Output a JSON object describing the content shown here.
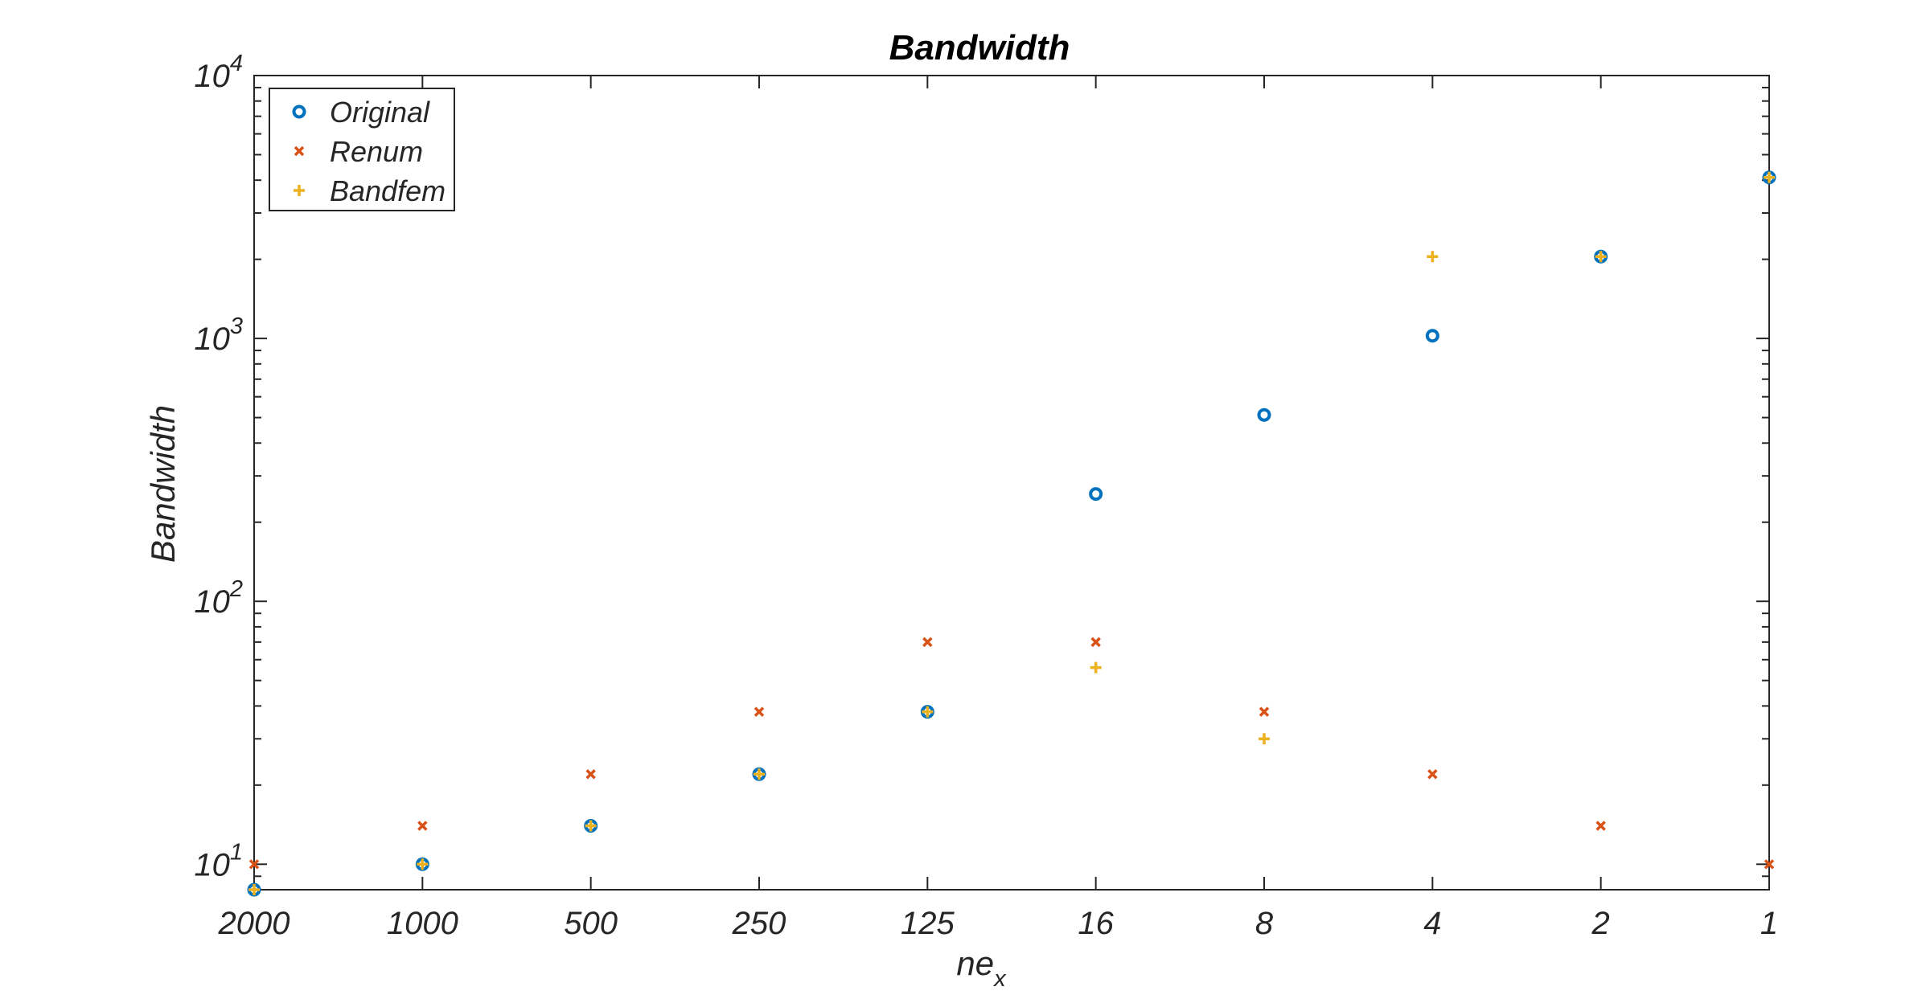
{
  "chart_data": {
    "type": "scatter",
    "title": "Bandwidth",
    "xlabel": "ne",
    "xlabel_sub": "x",
    "ylabel": "Bandwidth",
    "yscale": "log",
    "ylim": [
      8,
      10000
    ],
    "categories": [
      "2000",
      "1000",
      "500",
      "250",
      "125",
      "16",
      "8",
      "4",
      "2",
      "1"
    ],
    "y_ticks": [
      {
        "base": "10",
        "exp": "1",
        "value": 10
      },
      {
        "base": "10",
        "exp": "2",
        "value": 100
      },
      {
        "base": "10",
        "exp": "3",
        "value": 1000
      },
      {
        "base": "10",
        "exp": "4",
        "value": 10000
      }
    ],
    "grid": false,
    "legend_position": "top-left",
    "series": [
      {
        "name": "Original",
        "marker": "circle",
        "color": "#0072BD",
        "values": [
          8,
          10,
          14,
          22,
          38,
          256,
          512,
          1024,
          2048,
          4096
        ]
      },
      {
        "name": "Renum",
        "marker": "x",
        "color": "#D95319",
        "values": [
          10,
          14,
          22,
          38,
          70,
          70,
          38,
          22,
          14,
          10
        ]
      },
      {
        "name": "Bandfem",
        "marker": "plus",
        "color": "#EDB120",
        "values": [
          8,
          10,
          14,
          22,
          38,
          56,
          30,
          2048,
          2048,
          4096
        ]
      }
    ]
  }
}
